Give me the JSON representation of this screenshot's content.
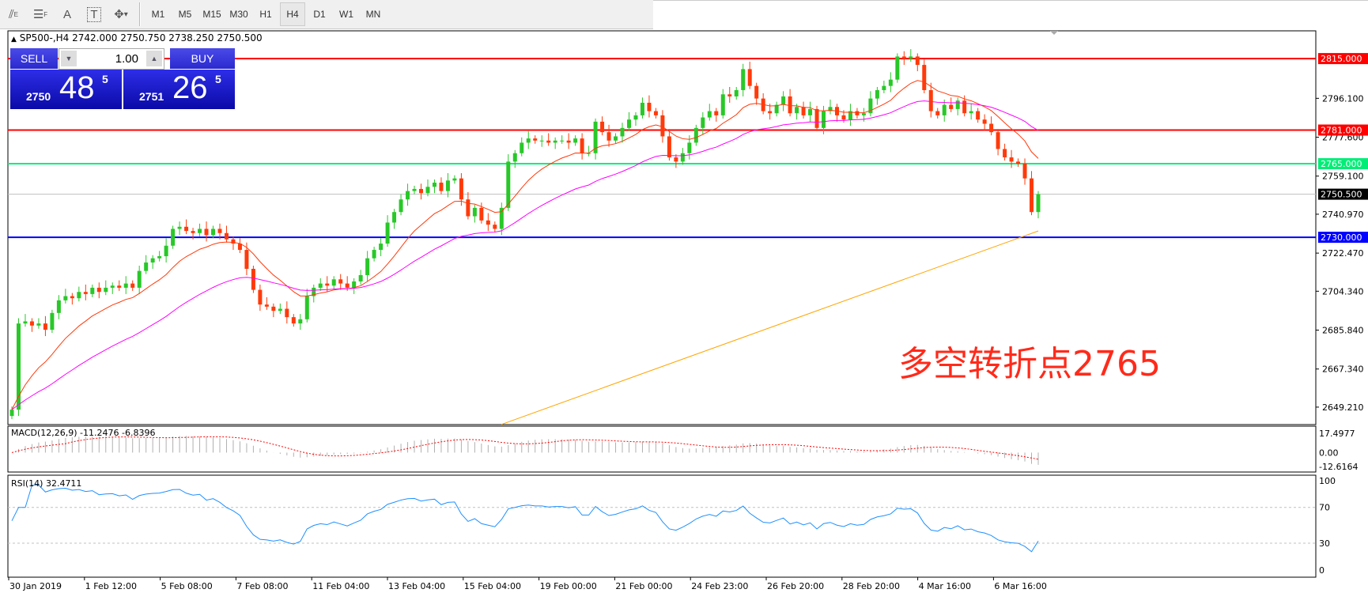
{
  "toolbar": {
    "icons": [
      "fibonacci-expansion-icon",
      "fibonacci-fan-icon",
      "text-icon",
      "text-label-icon",
      "arrows-icon"
    ],
    "text_icon": "A",
    "label_icon": "T",
    "dropdown": "▾",
    "timeframes": [
      "M1",
      "M5",
      "M15",
      "M30",
      "H1",
      "H4",
      "D1",
      "W1",
      "MN"
    ],
    "active_timeframe": "H4"
  },
  "symbol": {
    "marker": "▲",
    "text": "SP500-,H4  2742.000 2750.750 2738.250 2750.500"
  },
  "trade": {
    "sell": "SELL",
    "buy": "BUY",
    "lot": "1.00",
    "bid_small": "2750",
    "bid_big": "48",
    "bid_sup": "5",
    "ask_small": "2751",
    "ask_big": "26",
    "ask_sup": "5"
  },
  "annotation": "多空转折点2765",
  "colors": {
    "bull": "#28c828",
    "bear": "#ff3a0a",
    "ma_fast": "#ff3a0a",
    "ma_mid": "#ff00ff",
    "ma_slow": "#ffa500"
  },
  "chart_data": {
    "type": "candlestick",
    "price_axis": {
      "ticks": [
        "2796.100",
        "2777.600",
        "2759.100",
        "2740.970",
        "2722.470",
        "2704.340",
        "2685.840",
        "2667.340",
        "2649.210"
      ],
      "range": [
        2640.9,
        2828.2
      ]
    },
    "levels": [
      {
        "price": 2815,
        "label": "2815.000",
        "color": "#ff0000"
      },
      {
        "price": 2781,
        "label": "2781.000",
        "color": "#ff0000"
      },
      {
        "price": 2765,
        "label": "2765.000",
        "color": "#00ee77"
      },
      {
        "price": 2730,
        "label": "2730.000",
        "color": "#0000ff"
      },
      {
        "price": 2750.5,
        "label": "2750.500",
        "color": "#c0c0c0",
        "label_bg": "#000000"
      }
    ],
    "closes": [
      2648,
      2689,
      2690,
      2688,
      2689,
      2686,
      2694,
      2700,
      2702,
      2701,
      2704,
      2703,
      2706,
      2704,
      2706,
      2707,
      2706,
      2708,
      2706,
      2714,
      2718,
      2720,
      2721,
      2726,
      2734,
      2735,
      2733,
      2732,
      2734,
      2731,
      2734,
      2732,
      2729,
      2727,
      2724,
      2715,
      2705,
      2698,
      2697,
      2695,
      2696,
      2692,
      2689,
      2691,
      2702,
      2706,
      2708,
      2707,
      2710,
      2708,
      2706,
      2709,
      2712,
      2720,
      2724,
      2727,
      2737,
      2742,
      2748,
      2752,
      2753,
      2751,
      2754,
      2756,
      2752,
      2757,
      2758,
      2748,
      2740,
      2744,
      2738,
      2736,
      2734,
      2744,
      2766,
      2770,
      2775,
      2777,
      2776,
      2776,
      2775,
      2776,
      2776,
      2775,
      2777,
      2770,
      2770,
      2785,
      2780,
      2776,
      2778,
      2782,
      2786,
      2788,
      2794,
      2790,
      2788,
      2778,
      2768,
      2766,
      2770,
      2775,
      2782,
      2787,
      2790,
      2788,
      2798,
      2797,
      2800,
      2810,
      2802,
      2796,
      2790,
      2789,
      2793,
      2797,
      2789,
      2792,
      2788,
      2791,
      2782,
      2790,
      2792,
      2788,
      2786,
      2790,
      2788,
      2789,
      2796,
      2800,
      2802,
      2805,
      2816,
      2815,
      2816,
      2812,
      2800,
      2790,
      2788,
      2793,
      2791,
      2795,
      2789,
      2790,
      2786,
      2784,
      2780,
      2772,
      2768,
      2766,
      2765,
      2758,
      2742,
      2750.5
    ],
    "ma_slow_segment": {
      "from": [
        73,
        2641
      ],
      "to": [
        153,
        2733
      ]
    },
    "time_labels": [
      "30 Jan 2019",
      "1 Feb 12:00",
      "5 Feb 08:00",
      "7 Feb 08:00",
      "11 Feb 04:00",
      "13 Feb 04:00",
      "15 Feb 04:00",
      "19 Feb 00:00",
      "21 Feb 00:00",
      "24 Feb 23:00",
      "26 Feb 20:00",
      "28 Feb 20:00",
      "4 Mar 16:00",
      "6 Mar 16:00"
    ],
    "macd": {
      "label": "MACD(12,26,9) -11.2476 -6.8396",
      "ticks": [
        "17.4977",
        "0.00",
        "-12.6164"
      ],
      "range": [
        -17.5,
        23.8
      ]
    },
    "rsi": {
      "label": "RSI(14) 32.4711",
      "ticks": [
        "100",
        "70",
        "30",
        "0"
      ],
      "levels": [
        70,
        30
      ],
      "range": [
        -8,
        106
      ]
    }
  }
}
